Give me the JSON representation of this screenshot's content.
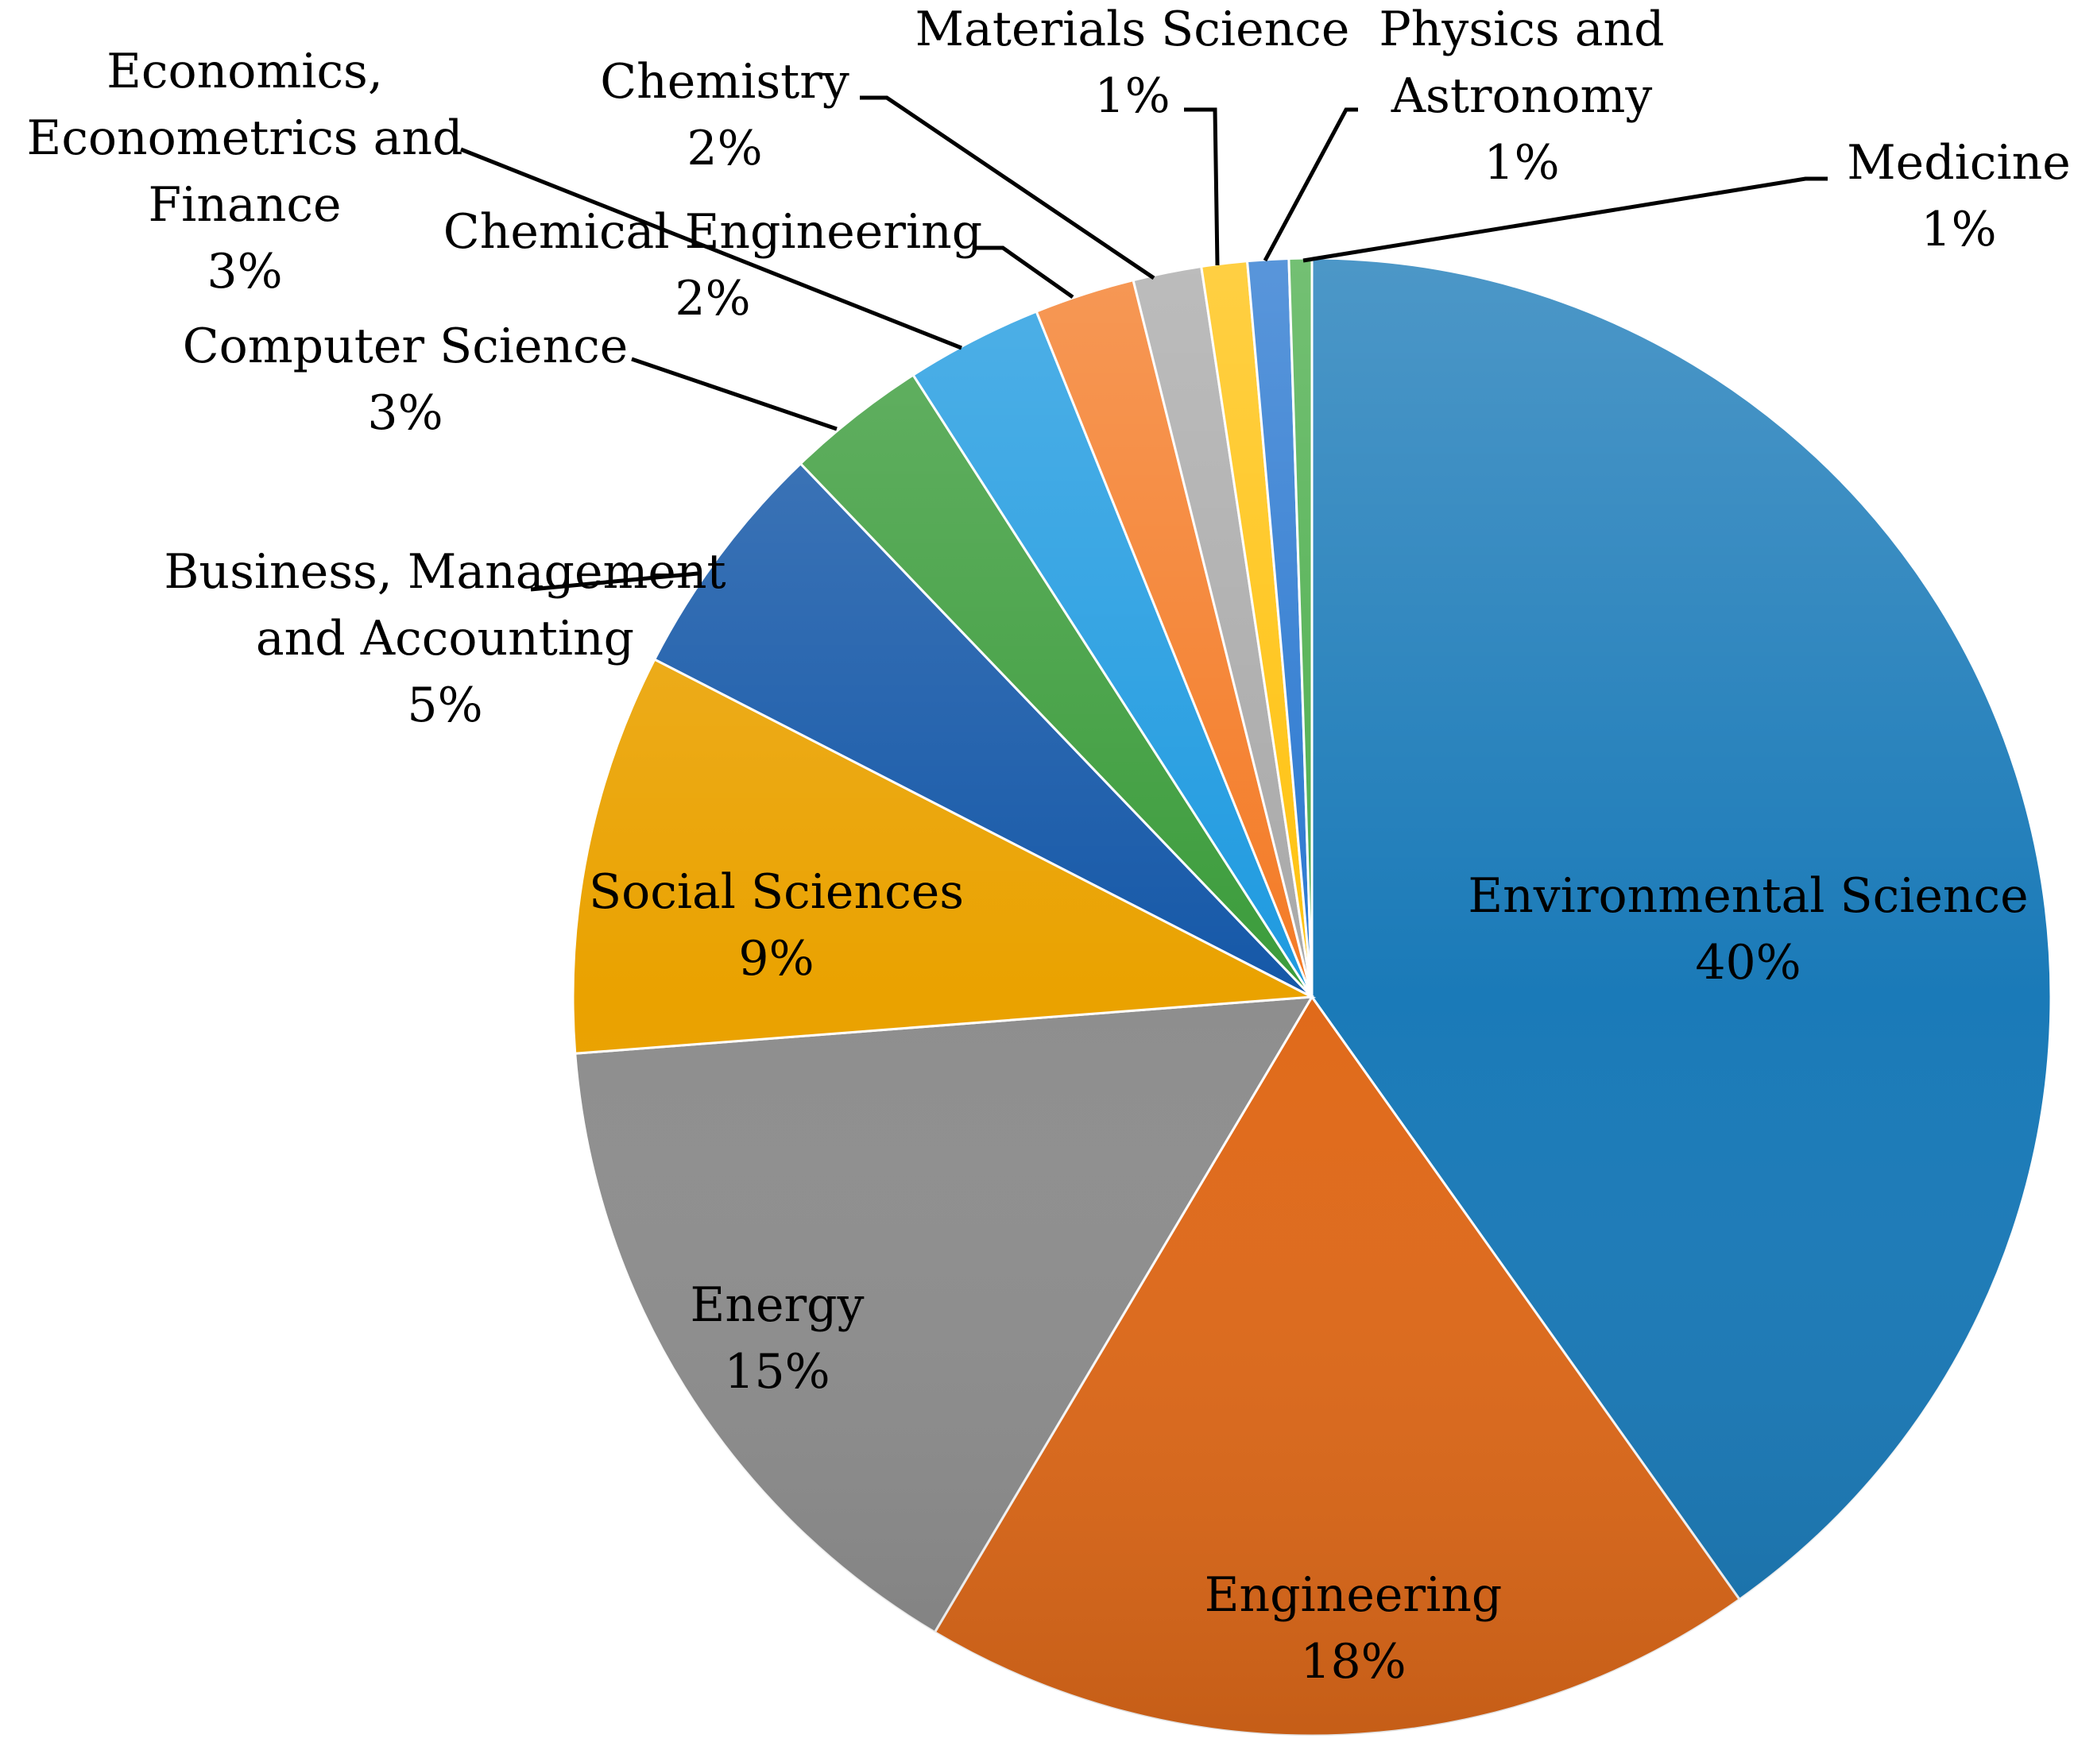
{
  "chart_data": {
    "type": "pie",
    "title": "",
    "label_format": "category-and-percent",
    "start_angle_deg": 0,
    "direction": "clockwise",
    "slices": [
      {
        "label": [
          "Environmental Science"
        ],
        "percent_label": "40%",
        "value": 40.3,
        "color": "#1a7ab8"
      },
      {
        "label": [
          "Engineering"
        ],
        "percent_label": "18%",
        "value": 18.4,
        "color": "#e06a1a"
      },
      {
        "label": [
          "Energy"
        ],
        "percent_label": "15%",
        "value": 15.3,
        "color": "#8e8e8e"
      },
      {
        "label": [
          "Social Sciences"
        ],
        "percent_label": "9%",
        "value": 8.8,
        "color": "#eaa200"
      },
      {
        "label": [
          "Business, Management",
          "and Accounting"
        ],
        "percent_label": "5%",
        "value": 5.3,
        "color": "#1558a8"
      },
      {
        "label": [
          "Computer Science"
        ],
        "percent_label": "3%",
        "value": 3.1,
        "color": "#3b9c3b"
      },
      {
        "label": [
          "Economics,",
          "Econometrics and",
          "Finance"
        ],
        "percent_label": "3%",
        "value": 3.0,
        "color": "#1e9ae0"
      },
      {
        "label": [
          "Chemical Engineering"
        ],
        "percent_label": "2%",
        "value": 2.2,
        "color": "#f47b26"
      },
      {
        "label": [
          "Chemistry"
        ],
        "percent_label": "2%",
        "value": 1.5,
        "color": "#a9a9a9"
      },
      {
        "label": [
          "Materials Science"
        ],
        "percent_label": "1%",
        "value": 1.0,
        "color": "#ffc20e"
      },
      {
        "label": [
          "Physics and",
          "Astronomy"
        ],
        "percent_label": "1%",
        "value": 0.9,
        "color": "#2a78d0"
      },
      {
        "label": [
          "Medicine"
        ],
        "percent_label": "1%",
        "value": 0.5,
        "color": "#4cae4c"
      }
    ]
  }
}
